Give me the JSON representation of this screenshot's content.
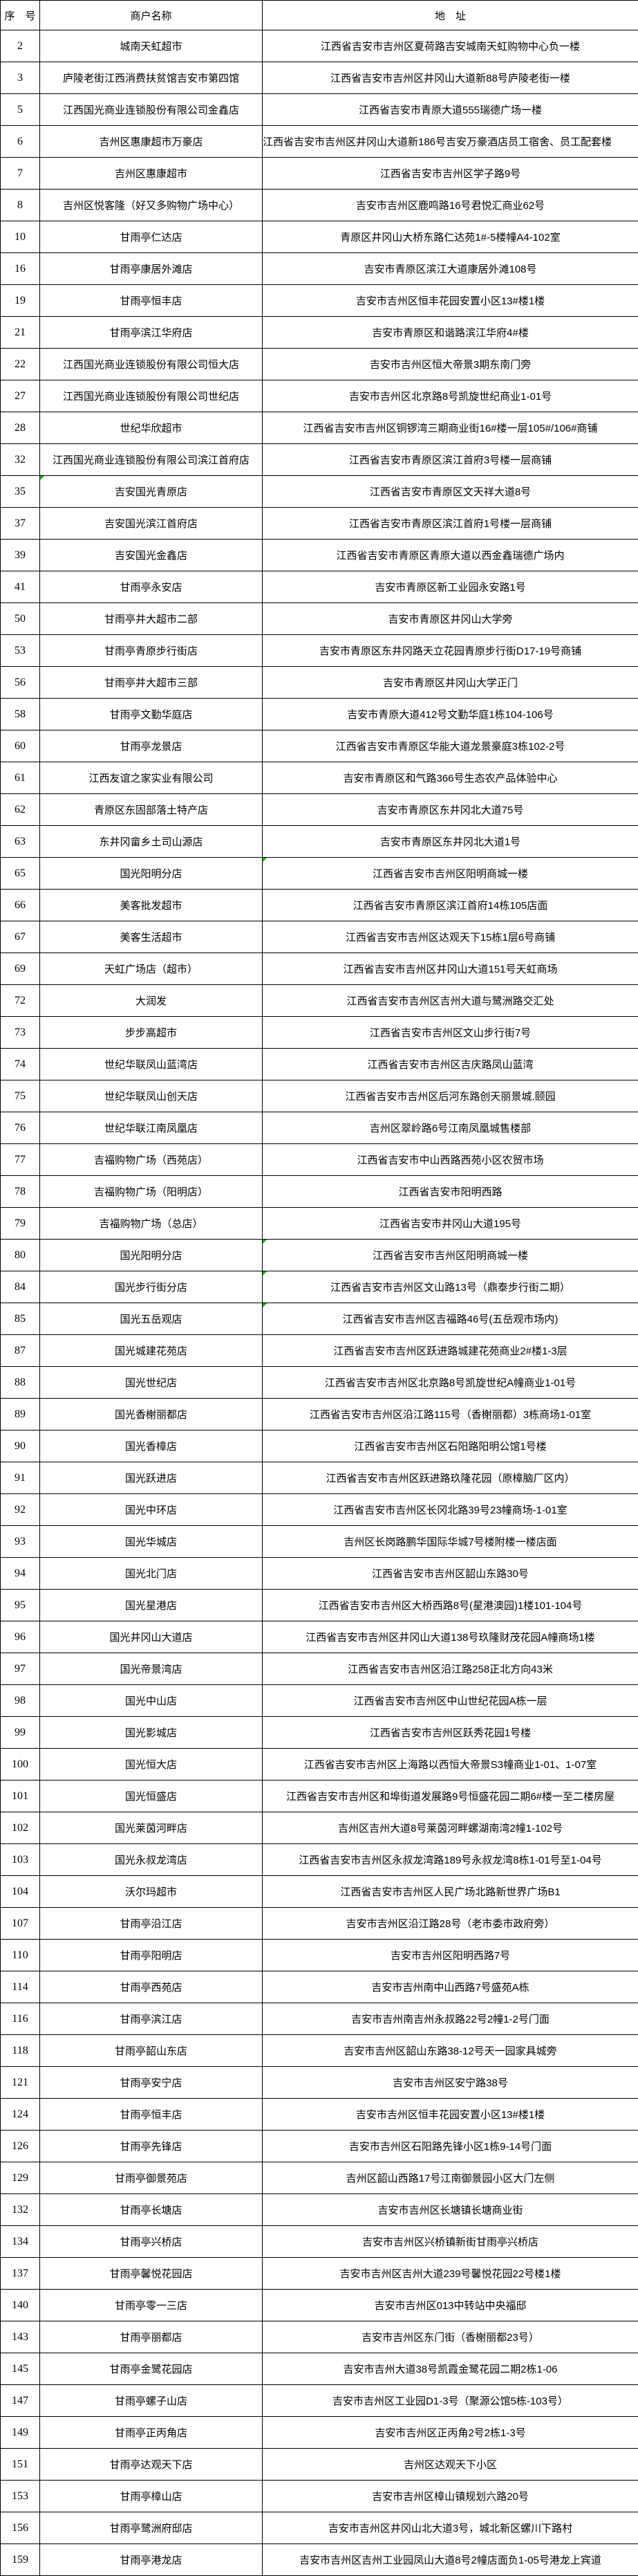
{
  "colors": {
    "background": "#ffffff",
    "grid": "#000000",
    "text": "#000000",
    "note_mark_green": "#00b000"
  },
  "table": {
    "columns": [
      "序　号",
      "商户名称",
      "地　址"
    ],
    "rows": [
      {
        "no": "2",
        "name": "城南天虹超市",
        "addr": "江西省吉安市吉州区夏荷路吉安城南天虹购物中心负一楼"
      },
      {
        "no": "3",
        "name": "庐陵老街江西消费扶贫馆吉安市第四馆",
        "addr": "江西省吉安市吉州区井冈山大道新88号庐陵老街一楼"
      },
      {
        "no": "5",
        "name": "江西国光商业连锁股份有限公司金鑫店",
        "addr": "江西省吉安市青原大道555瑞德广场一楼"
      },
      {
        "no": "6",
        "name": "吉州区惠康超市万豪店",
        "addr": "江西省吉安市吉州区井冈山大道新186号吉安万豪酒店员工宿舍、员工配套楼",
        "clip": true
      },
      {
        "no": "7",
        "name": "吉州区惠康超市",
        "addr": "江西省吉安市吉州区学子路9号"
      },
      {
        "no": "8",
        "name": "吉州区悦客隆（好又多购物广场中心）",
        "addr": "吉安市吉州区鹿鸣路16号君悦汇商业62号"
      },
      {
        "no": "10",
        "name": "甘雨亭仁达店",
        "addr": "青原区井冈山大桥东路仁达苑1#-5楼幢A4-102室"
      },
      {
        "no": "16",
        "name": "甘雨亭康居外滩店",
        "addr": "吉安市青原区滨江大道康居外滩108号"
      },
      {
        "no": "19",
        "name": "甘雨亭恒丰店",
        "addr": "吉安市吉州区恒丰花园安置小区13#楼1楼"
      },
      {
        "no": "21",
        "name": "甘雨亭滨江华府店",
        "addr": "吉安市青原区和谐路滨江华府4#楼"
      },
      {
        "no": "22",
        "name": "江西国光商业连锁股份有限公司恒大店",
        "addr": "吉安市吉州区恒大帝景3期东南门旁"
      },
      {
        "no": "27",
        "name": "江西国光商业连锁股份有限公司世纪店",
        "addr": "吉安市吉州区北京路8号凯旋世纪商业1-01号"
      },
      {
        "no": "28",
        "name": "世纪华欣超市",
        "addr": "江西省吉安市吉州区铜锣湾三期商业街16#楼一层105#/106#商铺"
      },
      {
        "no": "32",
        "name": "江西国光商业连锁股份有限公司滨江首府店",
        "addr": "江西省吉安市青原区滨江首府3号楼一层商铺"
      },
      {
        "no": "35",
        "name": "吉安国光青原店",
        "addr": "江西省吉安市青原区文天祥大道8号",
        "note": "name"
      },
      {
        "no": "37",
        "name": "吉安国光滨江首府店",
        "addr": "江西省吉安市青原区滨江首府1号楼一层商铺"
      },
      {
        "no": "39",
        "name": "吉安国光金鑫店",
        "addr": "江西省吉安市青原区青原大道以西金鑫瑞德广场内"
      },
      {
        "no": "41",
        "name": "甘雨亭永安店",
        "addr": "吉安市青原区新工业园永安路1号"
      },
      {
        "no": "50",
        "name": "甘雨亭井大超市二部",
        "addr": "吉安市青原区井冈山大学旁"
      },
      {
        "no": "53",
        "name": "甘雨亭青原步行街店",
        "addr": "吉安市青原区东井冈路天立花园青原步行街D17-19号商铺"
      },
      {
        "no": "56",
        "name": "甘雨亭井大超市三部",
        "addr": "吉安市青原区井冈山大学正门"
      },
      {
        "no": "58",
        "name": "甘雨亭文勤华庭店",
        "addr": "吉安市青原大道412号文勤华庭1栋104-106号"
      },
      {
        "no": "60",
        "name": "甘雨亭龙景店",
        "addr": "江西省吉安市青原区华能大道龙景豪庭3栋102-2号"
      },
      {
        "no": "61",
        "name": "江西友谊之家实业有限公司",
        "addr": "吉安市青原区和气路366号生态农产品体验中心"
      },
      {
        "no": "62",
        "name": "青原区东固部落土特产店",
        "addr": "吉安市青原区东井冈北大道75号"
      },
      {
        "no": "63",
        "name": "东井冈畲乡土司山源店",
        "addr": "吉安市青原区东井冈北大道1号"
      },
      {
        "no": "65",
        "name": "国光阳明分店",
        "addr": "江西省吉安市吉州区阳明商城一楼",
        "note": "addr"
      },
      {
        "no": "66",
        "name": "美客批发超市",
        "addr": "江西省吉安市青原区滨江首府14栋105店面"
      },
      {
        "no": "67",
        "name": "美客生活超市",
        "addr": "江西省吉安市吉州区达观天下15栋1层6号商铺"
      },
      {
        "no": "69",
        "name": "天虹广场店（超市）",
        "addr": "江西省吉安市吉州区井冈山大道151号天虹商场"
      },
      {
        "no": "72",
        "name": "大润发",
        "addr": "江西省吉安市吉州区吉州大道与鹭洲路交汇处"
      },
      {
        "no": "73",
        "name": "步步高超市",
        "addr": "江西省吉安市吉州区文山步行街7号"
      },
      {
        "no": "74",
        "name": "世纪华联凤山蓝湾店",
        "addr": "江西省吉安市吉州区吉庆路凤山蓝湾"
      },
      {
        "no": "75",
        "name": "世纪华联凤山创天店",
        "addr": "江西省吉安市吉州区后河东路创天丽景城.颐园"
      },
      {
        "no": "76",
        "name": "世纪华联江南凤凰店",
        "addr": "吉州区翠岭路6号江南凤凰城售楼部"
      },
      {
        "no": "77",
        "name": "吉福购物广场（西苑店）",
        "addr": "江西省吉安市中山西路西苑小区农贸市场"
      },
      {
        "no": "78",
        "name": "吉福购物广场（阳明店）",
        "addr": "江西省吉安市阳明西路"
      },
      {
        "no": "79",
        "name": "吉福购物广场（总店）",
        "addr": "江西省吉安市井冈山大道195号"
      },
      {
        "no": "80",
        "name": "国光阳明分店",
        "addr": "江西省吉安市吉州区阳明商城一楼",
        "note": "addr"
      },
      {
        "no": "84",
        "name": "国光步行街分店",
        "addr": "江西省吉安市吉州区文山路13号（鼎泰步行街二期）",
        "note": "addr"
      },
      {
        "no": "85",
        "name": "国光五岳观店",
        "addr": "江西省吉安市吉州区吉福路46号(五岳观市场内)",
        "note": "addr"
      },
      {
        "no": "87",
        "name": "国光城建花苑店",
        "addr": "江西省吉安市吉州区跃进路城建花苑商业2#楼1-3层"
      },
      {
        "no": "88",
        "name": "国光世纪店",
        "addr": "江西省吉安市吉州区北京路8号凯旋世纪A幢商业1-01号"
      },
      {
        "no": "89",
        "name": "国光香榭丽都店",
        "addr": "江西省吉安市吉州区沿江路115号（香榭丽都）3栋商场1-01室"
      },
      {
        "no": "90",
        "name": "国光香樟店",
        "addr": "江西省吉安市吉州区石阳路阳明公馆1号楼"
      },
      {
        "no": "91",
        "name": "国光跃进店",
        "addr": "江西省吉安市吉州区跃进路玖隆花园（原樟脑厂区内）"
      },
      {
        "no": "92",
        "name": "国光中环店",
        "addr": "江西省吉安市吉州区长冈北路39号23幢商场-1-01室"
      },
      {
        "no": "93",
        "name": "国光华城店",
        "addr": "吉州区长岗路鹏华国际华城7号楼附楼一楼店面"
      },
      {
        "no": "94",
        "name": "国光北门店",
        "addr": "江西省吉安市吉州区韶山东路30号"
      },
      {
        "no": "95",
        "name": "国光星港店",
        "addr": "江西省吉安市吉州区大桥西路8号(星港澳园)1楼101-104号"
      },
      {
        "no": "96",
        "name": "国光井冈山大道店",
        "addr": "江西省吉安市吉州区井冈山大道138号玖隆财茂花园A幢商场1楼"
      },
      {
        "no": "97",
        "name": "国光帝景湾店",
        "addr": "江西省吉安市吉州区沿江路258正北方向43米"
      },
      {
        "no": "98",
        "name": "国光中山店",
        "addr": "江西省吉安市吉州区中山世纪花园A栋一层"
      },
      {
        "no": "99",
        "name": "国光影城店",
        "addr": "江西省吉安市吉州区跃秀花园1号楼"
      },
      {
        "no": "100",
        "name": "国光恒大店",
        "addr": "江西省吉安市吉州区上海路以西恒大帝景S3幢商业1-01、1-07室"
      },
      {
        "no": "101",
        "name": "国光恒盛店",
        "addr": "江西省吉安市吉州区和埠街道发展路9号恒盛花园二期6#楼一至二楼房屋"
      },
      {
        "no": "102",
        "name": "国光莱茵河畔店",
        "addr": "吉州区吉州大道8号莱茵河畔螺湖南湾2幢1-102号"
      },
      {
        "no": "103",
        "name": "国光永叔龙湾店",
        "addr": "江西省吉安市吉州区永叔龙湾路189号永叔龙湾8栋1-01号至1-04号"
      },
      {
        "no": "104",
        "name": "沃尔玛超市",
        "addr": "江西省吉安市吉州区人民广场北路新世界广场B1"
      },
      {
        "no": "107",
        "name": "甘雨亭沿江店",
        "addr": "吉安市吉州区沿江路28号（老市委市政府旁）"
      },
      {
        "no": "110",
        "name": "甘雨亭阳明店",
        "addr": "吉安市吉州区阳明西路7号"
      },
      {
        "no": "114",
        "name": "甘雨亭西苑店",
        "addr": "吉安市吉州南中山西路7号盛苑A栋"
      },
      {
        "no": "116",
        "name": "甘雨亭滨江店",
        "addr": "吉安市吉州南吉州永叔路22号2幢1-2号门面"
      },
      {
        "no": "118",
        "name": "甘雨亭韶山东店",
        "addr": "吉安市吉州区韶山东路38-12号天一园家具城旁"
      },
      {
        "no": "121",
        "name": "甘雨亭安宁店",
        "addr": "吉安市吉州区安宁路38号"
      },
      {
        "no": "124",
        "name": "甘雨亭恒丰店",
        "addr": "吉安市吉州区恒丰花园安置小区13#楼1楼"
      },
      {
        "no": "126",
        "name": "甘雨亭先锋店",
        "addr": "吉安市吉州区石阳路先锋小区1栋9-14号门面"
      },
      {
        "no": "129",
        "name": "甘雨亭御景苑店",
        "addr": "吉州区韶山西路17号江南御景园小区大门左侧"
      },
      {
        "no": "132",
        "name": "甘雨亭长塘店",
        "addr": "吉安市吉州区长塘镇长塘商业街"
      },
      {
        "no": "134",
        "name": "甘雨亭兴桥店",
        "addr": "吉安市吉州区兴桥镇新街甘雨亭兴桥店"
      },
      {
        "no": "137",
        "name": "甘雨亭馨悦花园店",
        "addr": "吉安市吉州区吉州大道239号馨悦花园22号楼1楼"
      },
      {
        "no": "140",
        "name": "甘雨亭零一三店",
        "addr": "吉安市吉州区013中转站中央福邸"
      },
      {
        "no": "143",
        "name": "甘雨亭丽都店",
        "addr": "吉安市吉州区东门街（香榭丽都23号）"
      },
      {
        "no": "145",
        "name": "甘雨亭金鹭花园店",
        "addr": "吉安市吉州大道38号凯霞金鹭花园二期2栋1-06"
      },
      {
        "no": "147",
        "name": "甘雨亭螺子山店",
        "addr": "吉安市吉州区工业园D1-3号（聚源公馆5栋-103号）"
      },
      {
        "no": "149",
        "name": "甘雨亭正丙角店",
        "addr": "吉安市吉州区正丙角2号2栋1-3号"
      },
      {
        "no": "151",
        "name": "甘雨亭达观天下店",
        "addr": "吉州区达观天下小区"
      },
      {
        "no": "153",
        "name": "甘雨亭樟山店",
        "addr": "吉安市吉州区樟山镇规划六路20号"
      },
      {
        "no": "156",
        "name": "甘雨亭鹭洲府邸店",
        "addr": "吉安市吉州区井冈山北大道3号，城北新区螺川下路村"
      },
      {
        "no": "159",
        "name": "甘雨亭港龙店",
        "addr": "吉安市吉州区吉州工业园凤山大道8号2幢店面负1-05号港龙上宾道"
      }
    ]
  }
}
